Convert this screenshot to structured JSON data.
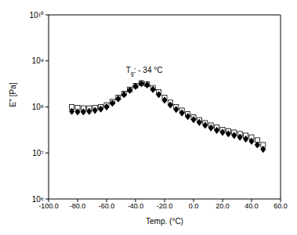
{
  "chart_data": {
    "type": "scatter",
    "x_label": "Temp. (°C)",
    "y_label": "E'' [Pa]",
    "log": "y",
    "grid": false,
    "xlim": [
      -100,
      60
    ],
    "xticks": [
      {
        "value": -100,
        "label": "-100.0"
      },
      {
        "value": -80,
        "label": "-80.0"
      },
      {
        "value": -60,
        "label": "-60.0"
      },
      {
        "value": -40,
        "label": "-40.0"
      },
      {
        "value": -20,
        "label": "-20.0"
      },
      {
        "value": 0,
        "label": "0.0"
      },
      {
        "value": 20,
        "label": "20.0"
      },
      {
        "value": 40,
        "label": "40.0"
      },
      {
        "value": 60,
        "label": "60.0"
      }
    ],
    "ylim": [
      1000000,
      10000000000
    ],
    "yticks": [
      {
        "value": 1000000,
        "label": "10⁶"
      },
      {
        "value": 10000000,
        "label": "10⁷"
      },
      {
        "value": 100000000,
        "label": "10⁸"
      },
      {
        "value": 1000000000,
        "label": "10⁹"
      },
      {
        "value": 10000000000,
        "label": "10¹⁰"
      }
    ],
    "annotations": [
      {
        "text": "Tg: - 34 °C",
        "x": -34,
        "y": 550000000
      }
    ],
    "x": [
      -84,
      -80,
      -76,
      -72,
      -68,
      -64,
      -60,
      -56,
      -52,
      -48,
      -44,
      -40,
      -36,
      -32,
      -28,
      -24,
      -20,
      -16,
      -12,
      -8,
      -4,
      0,
      4,
      8,
      12,
      16,
      20,
      24,
      28,
      32,
      36,
      40,
      44,
      48
    ],
    "series": [
      {
        "color": "#000000",
        "marker": "square",
        "values": [
          100000000,
          96000000,
          94000000,
          94000000,
          96000000,
          100000000,
          110000000,
          130000000,
          160000000,
          195000000,
          240000000,
          290000000,
          330000000,
          310000000,
          260000000,
          210000000,
          160000000,
          125000000,
          100000000,
          84000000,
          70000000,
          60000000,
          52000000,
          45000000,
          40000000,
          36000000,
          32000000,
          30000000,
          28000000,
          26000000,
          24000000,
          22000000,
          19000000,
          15000000
        ]
      },
      {
        "color": "#000000",
        "marker": "diamond",
        "values": [
          80000000,
          78000000,
          78000000,
          80000000,
          84000000,
          90000000,
          100000000,
          120000000,
          150000000,
          185000000,
          230000000,
          280000000,
          320000000,
          300000000,
          240000000,
          185000000,
          140000000,
          110000000,
          88000000,
          74000000,
          62000000,
          53000000,
          46000000,
          40000000,
          35000000,
          31000000,
          28000000,
          26000000,
          24000000,
          22000000,
          20000000,
          18000000,
          15000000,
          12000000
        ]
      }
    ]
  }
}
